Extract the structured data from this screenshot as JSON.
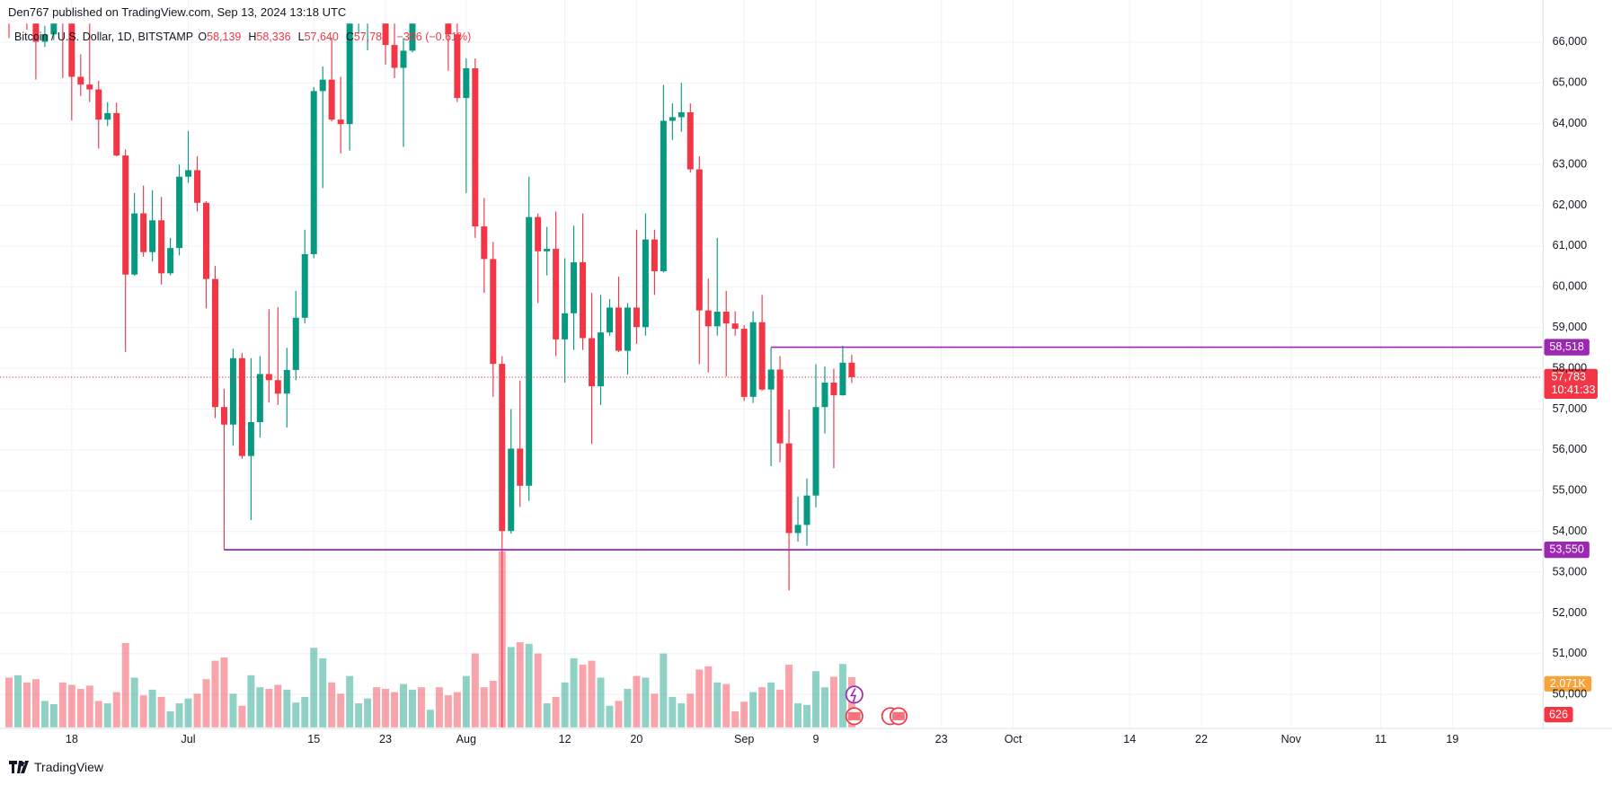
{
  "header": {
    "published": "Den767 published on TradingView.com, Sep 13, 2024 13:18 UTC"
  },
  "footer": {
    "brand": "TradingView"
  },
  "chart_data": {
    "type": "candlestick",
    "legend": {
      "symbol": "Bitcoin / U.S. Dollar, 1D, BITSTAMP",
      "items": [
        {
          "key": "O",
          "value": "58,139"
        },
        {
          "key": "H",
          "value": "58,336"
        },
        {
          "key": "L",
          "value": "57,640"
        },
        {
          "key": "C",
          "value": "57,783"
        }
      ],
      "change": "−356 (−0.61%)"
    },
    "up_color": "#089981",
    "down_color": "#f23645",
    "x": [
      "Jun 11",
      "Jun 12",
      "Jun 13",
      "Jun 14",
      "Jun 15",
      "Jun 16",
      "Jun 17",
      "Jun 18",
      "Jun 19",
      "Jun 20",
      "Jun 21",
      "Jun 22",
      "Jun 23",
      "Jun 24",
      "Jun 25",
      "Jun 26",
      "Jun 27",
      "Jun 28",
      "Jun 29",
      "Jun 30",
      "Jul 1",
      "Jul 2",
      "Jul 3",
      "Jul 4",
      "Jul 5",
      "Jul 6",
      "Jul 7",
      "Jul 8",
      "Jul 9",
      "Jul 10",
      "Jul 11",
      "Jul 12",
      "Jul 13",
      "Jul 14",
      "Jul 15",
      "Jul 16",
      "Jul 17",
      "Jul 18",
      "Jul 19",
      "Jul 20",
      "Jul 21",
      "Jul 22",
      "Jul 23",
      "Jul 24",
      "Jul 25",
      "Jul 26",
      "Jul 27",
      "Jul 28",
      "Jul 29",
      "Jul 30",
      "Jul 31",
      "Aug 1",
      "Aug 2",
      "Aug 3",
      "Aug 4",
      "Aug 5",
      "Aug 6",
      "Aug 7",
      "Aug 8",
      "Aug 9",
      "Aug 10",
      "Aug 11",
      "Aug 12",
      "Aug 13",
      "Aug 14",
      "Aug 15",
      "Aug 16",
      "Aug 17",
      "Aug 18",
      "Aug 19",
      "Aug 20",
      "Aug 21",
      "Aug 22",
      "Aug 23",
      "Aug 24",
      "Aug 25",
      "Aug 26",
      "Aug 27",
      "Aug 28",
      "Aug 29",
      "Aug 30",
      "Aug 31",
      "Sep 1",
      "Sep 2",
      "Sep 3",
      "Sep 4",
      "Sep 5",
      "Sep 6",
      "Sep 7",
      "Sep 8",
      "Sep 9",
      "Sep 10",
      "Sep 11",
      "Sep 12",
      "Sep 13"
    ],
    "open": [
      69500,
      67320,
      68240,
      66760,
      66010,
      66190,
      66640,
      66490,
      65150,
      64960,
      64840,
      64100,
      64260,
      63220,
      60300,
      61800,
      60850,
      61630,
      60330,
      60950,
      62700,
      62860,
      62060,
      60190,
      57050,
      56620,
      58250,
      55850,
      56680,
      57860,
      57710,
      57380,
      57960,
      59240,
      60800,
      64800,
      65080,
      64100,
      63990,
      66700,
      67150,
      68170,
      67570,
      65930,
      65370,
      65790,
      67910,
      67880,
      68250,
      66800,
      66190,
      64630,
      65360,
      61480,
      60680,
      58110,
      54010,
      56030,
      55120,
      61710,
      60870,
      60930,
      58710,
      59350,
      60600,
      58740,
      57560,
      58880,
      59490,
      58430,
      59490,
      59010,
      61160,
      60380,
      64070,
      64160,
      64280,
      62880,
      59420,
      59030,
      59390,
      59100,
      58970,
      57300,
      59130,
      57480,
      57970,
      56160,
      53960,
      54160,
      54880,
      57050,
      57650,
      57340,
      58139
    ],
    "high": [
      69560,
      69999,
      68450,
      67300,
      66400,
      66980,
      67240,
      66500,
      65700,
      66480,
      65050,
      64530,
      64520,
      63370,
      62300,
      62480,
      62370,
      62200,
      61200,
      63000,
      63820,
      63200,
      62100,
      60510,
      57500,
      58480,
      58380,
      58250,
      58300,
      59450,
      59500,
      58500,
      59900,
      61400,
      64900,
      65400,
      66100,
      65150,
      67450,
      67600,
      68400,
      68490,
      67800,
      67100,
      66100,
      68200,
      69400,
      68300,
      70000,
      66990,
      66800,
      65600,
      65600,
      62180,
      61100,
      58300,
      57000,
      57700,
      62700,
      61800,
      61470,
      61850,
      60700,
      61500,
      61800,
      59850,
      59800,
      59700,
      60250,
      59600,
      61400,
      61800,
      61400,
      64950,
      64500,
      65000,
      64500,
      63200,
      60200,
      61200,
      59900,
      59400,
      59060,
      59400,
      59800,
      58500,
      58300,
      56990,
      54850,
      55300,
      58100,
      58050,
      57990,
      58550,
      58336
    ],
    "low": [
      66100,
      66900,
      66300,
      65080,
      65880,
      66050,
      65120,
      64080,
      64680,
      64530,
      63390,
      63940,
      63200,
      58400,
      60270,
      60740,
      60620,
      60060,
      60280,
      60770,
      62550,
      61850,
      59470,
      56780,
      53550,
      56100,
      55780,
      54280,
      56300,
      57160,
      57100,
      56550,
      57710,
      59100,
      60700,
      62420,
      64060,
      63270,
      63340,
      66200,
      65800,
      66590,
      65450,
      65120,
      63430,
      65750,
      66700,
      67050,
      66500,
      65300,
      64530,
      62300,
      61200,
      59850,
      57300,
      49050,
      53950,
      54600,
      54750,
      59600,
      60280,
      58300,
      57650,
      58450,
      58450,
      56150,
      57100,
      58800,
      58400,
      57850,
      58600,
      58800,
      59800,
      60350,
      63600,
      63800,
      62800,
      58100,
      57900,
      58800,
      57800,
      58800,
      57200,
      57150,
      57450,
      55600,
      55700,
      52550,
      53750,
      53650,
      54590,
      56400,
      55550,
      57330,
      57640
    ],
    "close": [
      67320,
      68240,
      66760,
      66010,
      66190,
      66640,
      66490,
      65150,
      64960,
      64840,
      64100,
      64260,
      63220,
      60300,
      61800,
      60850,
      61630,
      60330,
      60950,
      62700,
      62860,
      62060,
      60190,
      57050,
      56620,
      58250,
      55850,
      56680,
      57860,
      57710,
      57380,
      57960,
      59240,
      60800,
      64800,
      65080,
      64100,
      63990,
      66700,
      67150,
      68170,
      67570,
      65930,
      65370,
      65790,
      67910,
      67880,
      68250,
      66800,
      66190,
      64630,
      65360,
      61480,
      60680,
      58110,
      54010,
      56030,
      55120,
      61710,
      60870,
      60930,
      58710,
      59350,
      60600,
      58740,
      57560,
      58880,
      59490,
      58430,
      59490,
      59010,
      61160,
      60380,
      64070,
      64160,
      64280,
      62880,
      59420,
      59030,
      59390,
      59100,
      58970,
      57300,
      59130,
      57480,
      57970,
      56160,
      53960,
      54160,
      54880,
      57050,
      57650,
      57340,
      58139,
      57783
    ],
    "volume": [
      620,
      650,
      560,
      600,
      330,
      290,
      560,
      530,
      480,
      520,
      330,
      300,
      440,
      1050,
      620,
      400,
      470,
      380,
      200,
      300,
      360,
      420,
      600,
      830,
      870,
      420,
      270,
      650,
      500,
      480,
      530,
      470,
      310,
      380,
      990,
      860,
      560,
      420,
      640,
      300,
      360,
      500,
      480,
      440,
      540,
      470,
      500,
      220,
      500,
      400,
      440,
      640,
      920,
      500,
      580,
      2190,
      1000,
      1060,
      1040,
      920,
      300,
      380,
      560,
      860,
      780,
      830,
      620,
      270,
      330,
      480,
      640,
      620,
      420,
      920,
      380,
      300,
      420,
      720,
      760,
      560,
      540,
      200,
      320,
      440,
      500,
      560,
      470,
      780,
      300,
      280,
      700,
      500,
      630,
      790,
      626
    ],
    "volume_ma_label": "2.071K",
    "xlim": [
      "Jun 10",
      "Nov 29"
    ],
    "xticks": [
      {
        "value": "Jun 18",
        "label": "18"
      },
      {
        "value": "Jul 1",
        "label": "Jul"
      },
      {
        "value": "Jul 15",
        "label": "15"
      },
      {
        "value": "Jul 23",
        "label": "23"
      },
      {
        "value": "Aug 1",
        "label": "Aug"
      },
      {
        "value": "Aug 12",
        "label": "12"
      },
      {
        "value": "Aug 20",
        "label": "20"
      },
      {
        "value": "Sep 1",
        "label": "Sep"
      },
      {
        "value": "Sep 9",
        "label": "9"
      },
      {
        "value": "Sep 23",
        "label": "23"
      },
      {
        "value": "Oct 1",
        "label": "Oct"
      },
      {
        "value": "Oct 14",
        "label": "14"
      },
      {
        "value": "Oct 22",
        "label": "22"
      },
      {
        "value": "Nov 1",
        "label": "Nov"
      },
      {
        "value": "Nov 11",
        "label": "11"
      },
      {
        "value": "Nov 19",
        "label": "19"
      }
    ],
    "ylim": [
      49192,
      66454
    ],
    "yticks": [
      {
        "value": 50000,
        "label": "50,000"
      },
      {
        "value": 51000,
        "label": "51,000"
      },
      {
        "value": 52000,
        "label": "52,000"
      },
      {
        "value": 53000,
        "label": "53,000"
      },
      {
        "value": 54000,
        "label": "54,000"
      },
      {
        "value": 55000,
        "label": "55,000"
      },
      {
        "value": 56000,
        "label": "56,000"
      },
      {
        "value": 57000,
        "label": "57,000"
      },
      {
        "value": 58000,
        "label": "58,000"
      },
      {
        "value": 59000,
        "label": "59,000"
      },
      {
        "value": 60000,
        "label": "60,000"
      },
      {
        "value": 61000,
        "label": "61,000"
      },
      {
        "value": 62000,
        "label": "62,000"
      },
      {
        "value": 63000,
        "label": "63,000"
      },
      {
        "value": 64000,
        "label": "64,000"
      },
      {
        "value": 65000,
        "label": "65,000"
      },
      {
        "value": 66000,
        "label": "66,000"
      }
    ],
    "grid": true,
    "hlines": [
      {
        "value": 58518,
        "label": "58,518",
        "start": "Sep 4",
        "color": "#9c27b0"
      },
      {
        "value": 53550,
        "label": "53,550",
        "start": "Jul 5",
        "color": "#9c27b0"
      }
    ],
    "last_price": {
      "value": 57783,
      "label": "57,783",
      "countdown": "10:41:33",
      "color": "#f23645"
    }
  }
}
